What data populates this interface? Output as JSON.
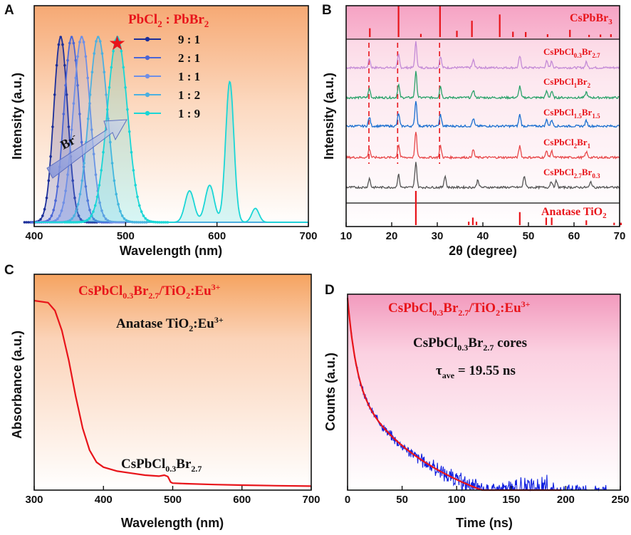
{
  "panels": [
    {
      "letter": "A"
    },
    {
      "letter": "B"
    },
    {
      "letter": "C"
    },
    {
      "letter": "D"
    }
  ],
  "chart_data": [
    {
      "id": "A",
      "type": "line",
      "title": "PbCl2 : PbBr2",
      "title_main": "PbCl",
      "title_sub1": "2",
      "title_mid": " : PbBr",
      "title_sub2": "2",
      "xlabel": "Wavelength (nm)",
      "ylabel": "Intensity (a.u.)",
      "xlim": [
        400,
        700
      ],
      "xticks": [
        "400",
        "500",
        "600",
        "700"
      ],
      "xtick_values": [
        400,
        500,
        600,
        700
      ],
      "annotation": "Br",
      "annotation_sup": "-",
      "marker_note": "★",
      "legend": [
        {
          "label": "9 : 1",
          "color": "#1c2f9a",
          "peak": 429,
          "fwhm": 18
        },
        {
          "label": "2 : 1",
          "color": "#4a66d6",
          "peak": 441,
          "fwhm": 20
        },
        {
          "label": "1 : 1",
          "color": "#6f8fe6",
          "peak": 452,
          "fwhm": 22
        },
        {
          "label": "1 : 2",
          "color": "#4cb0e0",
          "peak": 470,
          "fwhm": 24
        },
        {
          "label": "1 : 9",
          "color": "#1ad6d6",
          "peak": 491,
          "fwhm": 26
        }
      ],
      "eu_peaks": [
        {
          "center": 570,
          "height": 0.17,
          "width": 5
        },
        {
          "center": 592,
          "height": 0.2,
          "width": 5
        },
        {
          "center": 614,
          "height": 0.76,
          "width": 4.5
        },
        {
          "center": 642,
          "height": 0.075,
          "width": 4
        }
      ]
    },
    {
      "id": "B",
      "type": "line",
      "xlabel": "2θ (degree)",
      "ylabel": "Intensity (a.u.)",
      "xlim": [
        10,
        70
      ],
      "xticks": [
        "10",
        "20",
        "30",
        "40",
        "50",
        "60",
        "70"
      ],
      "xtick_values": [
        10,
        20,
        30,
        40,
        50,
        60,
        70
      ],
      "reference_top": {
        "label": "CsPbBr3",
        "label_main": "CsPbBr",
        "label_sub": "3",
        "peaks": [
          [
            15.2,
            0.28
          ],
          [
            21.5,
            1.0
          ],
          [
            26.4,
            0.1
          ],
          [
            30.6,
            1.0
          ],
          [
            34.3,
            0.2
          ],
          [
            37.6,
            0.52
          ],
          [
            43.7,
            0.72
          ],
          [
            46.6,
            0.17
          ],
          [
            49.4,
            0.16
          ],
          [
            54.2,
            0.09
          ],
          [
            59.1,
            0.23
          ],
          [
            63.3,
            0.07
          ],
          [
            65.8,
            0.08
          ],
          [
            68.1,
            0.09
          ]
        ]
      },
      "reference_bottom": {
        "label": "Anatase TiO2",
        "label_main": "Anatase TiO",
        "label_sub": "2",
        "peaks": [
          [
            25.3,
            1.0
          ],
          [
            36.9,
            0.1
          ],
          [
            37.8,
            0.22
          ],
          [
            38.6,
            0.1
          ],
          [
            48.1,
            0.38
          ],
          [
            53.9,
            0.22
          ],
          [
            55.1,
            0.22
          ],
          [
            62.7,
            0.14
          ],
          [
            68.8,
            0.07
          ],
          [
            70.3,
            0.07
          ]
        ]
      },
      "dashed_lines": [
        15.0,
        21.3,
        30.5
      ],
      "series": [
        {
          "name": "CsPbCl0.3Br2.7",
          "main": "CsPbCl",
          "s1": "0.3",
          "m2": "Br",
          "s2": "2.7",
          "color": "#c48ad6"
        },
        {
          "name": "CsPbCl1Br2",
          "main": "CsPbCl",
          "s1": "1",
          "m2": "Br",
          "s2": "2",
          "color": "#2aa26a"
        },
        {
          "name": "CsPbCl1.5Br1.5",
          "main": "CsPbCl",
          "s1": "1.5",
          "m2": "Br",
          "s2": "1.5",
          "color": "#1a6fd0"
        },
        {
          "name": "CsPbCl2Br1",
          "main": "CsPbCl",
          "s1": "2",
          "m2": "Br",
          "s2": "1",
          "color": "#e8484a"
        },
        {
          "name": "CsPbCl2.7Br0.3",
          "main": "CsPbCl",
          "s1": "2.7",
          "m2": "Br",
          "s2": "0.3",
          "color": "#555555"
        }
      ],
      "sample_peaks": [
        [
          15.1,
          0.35
        ],
        [
          21.5,
          0.5
        ],
        [
          25.3,
          1.0
        ],
        [
          30.7,
          0.45
        ],
        [
          37.9,
          0.3
        ],
        [
          48.1,
          0.45
        ],
        [
          54.0,
          0.25
        ],
        [
          55.1,
          0.25
        ],
        [
          62.7,
          0.22
        ]
      ]
    },
    {
      "id": "C",
      "type": "line",
      "title": "CsPbCl0.3Br2.7/TiO2:Eu3+",
      "t_main": "CsPbCl",
      "t_s1": "0.3",
      "t_m2": "Br",
      "t_s2": "2.7",
      "t_m3": "/TiO",
      "t_s3": "2",
      "t_m4": ":Eu",
      "t_sup": "3+",
      "note1": "Anatase TiO2:Eu3+",
      "n1_main": "Anatase TiO",
      "n1_sub": "2",
      "n1_m2": ":Eu",
      "n1_sup": "3+",
      "note2": "CsPbCl0.3Br2.7",
      "n2_main": "CsPbCl",
      "n2_s1": "0.3",
      "n2_m2": "Br",
      "n2_s2": "2.7",
      "xlabel": "Wavelength (nm)",
      "ylabel": "Absorbance (a.u.)",
      "xlim": [
        300,
        700
      ],
      "xticks": [
        "300",
        "400",
        "500",
        "600",
        "700"
      ],
      "xtick_values": [
        300,
        400,
        500,
        600,
        700
      ],
      "x": [
        300,
        320,
        330,
        340,
        350,
        360,
        370,
        380,
        390,
        400,
        420,
        440,
        460,
        480,
        488,
        493,
        497,
        500,
        520,
        560,
        600,
        650,
        700
      ],
      "y": [
        0.95,
        0.94,
        0.9,
        0.8,
        0.65,
        0.47,
        0.31,
        0.2,
        0.14,
        0.115,
        0.095,
        0.085,
        0.075,
        0.07,
        0.075,
        0.068,
        0.04,
        0.035,
        0.032,
        0.028,
        0.025,
        0.022,
        0.02
      ],
      "color": "#e8141a"
    },
    {
      "id": "D",
      "type": "line",
      "title": "CsPbCl0.3Br2.7/TiO2:Eu3+",
      "t_main": "CsPbCl",
      "t_s1": "0.3",
      "t_m2": "Br",
      "t_s2": "2.7",
      "t_m3": "/TiO",
      "t_s3": "2",
      "t_m4": ":Eu",
      "t_sup": "3+",
      "note1": "CsPbCl0.3Br2.7 cores",
      "n1_main": "CsPbCl",
      "n1_s1": "0.3",
      "n1_m2": "Br",
      "n1_s2": "2.7",
      "n1_m3": " cores",
      "note2": "τave = 19.55 ns",
      "n2_main": "τ",
      "n2_sub": "ave",
      "n2_m2": " = 19.55 ns",
      "xlabel": "Time (ns)",
      "ylabel": "Counts (a.u.)",
      "xlim": [
        0,
        250
      ],
      "xticks": [
        "0",
        "50",
        "100",
        "150",
        "200",
        "250"
      ],
      "xtick_values": [
        0,
        50,
        100,
        150,
        200,
        250
      ],
      "tau_ave": 19.55,
      "decay_color": "#1020e0",
      "fit_color": "#e8141a"
    }
  ]
}
